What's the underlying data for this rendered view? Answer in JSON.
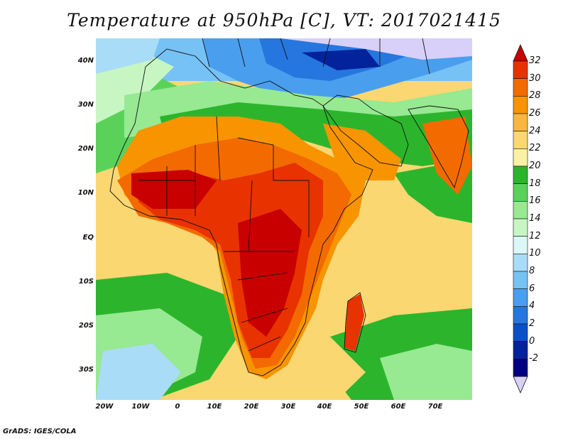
{
  "title": "Temperature at 950hPa [C], VT: 2017021415",
  "credit": "GrADS: IGES/COLA",
  "map": {
    "lat_ticks": [
      "40N",
      "30N",
      "20N",
      "10N",
      "EQ",
      "10S",
      "20S",
      "30S"
    ],
    "lon_ticks": [
      "20W",
      "10W",
      "0",
      "10E",
      "20E",
      "30E",
      "40E",
      "50E",
      "60E",
      "70E"
    ],
    "lon_range": [
      -22,
      80
    ],
    "lat_range": [
      -36.5,
      45
    ]
  },
  "colorbar": {
    "labels": [
      "32",
      "30",
      "28",
      "26",
      "24",
      "22",
      "20",
      "18",
      "16",
      "14",
      "12",
      "10",
      "8",
      "6",
      "4",
      "2",
      "0",
      "-2"
    ],
    "colors": [
      "#c80000",
      "#e83200",
      "#f36a00",
      "#f79400",
      "#f9b73d",
      "#fad771",
      "#fdf1a5",
      "#2cb52c",
      "#5ad25a",
      "#97e992",
      "#c7f6c3",
      "#dcf7f7",
      "#a9dcf7",
      "#76c2f5",
      "#4a9eee",
      "#2676df",
      "#0b4fc8",
      "#03239a",
      "#000080",
      "#d8d0f8"
    ]
  }
}
